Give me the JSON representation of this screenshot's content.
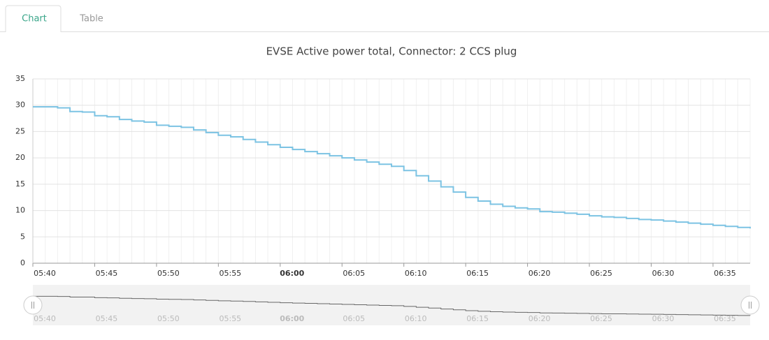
{
  "tabs": [
    "Chart",
    "Table"
  ],
  "chart_data": {
    "type": "line",
    "step": true,
    "title": "EVSE Active power total, Connector: 2 CCS plug",
    "x": [
      "05:40",
      "05:41",
      "05:42",
      "05:43",
      "05:44",
      "05:45",
      "05:46",
      "05:47",
      "05:48",
      "05:49",
      "05:50",
      "05:51",
      "05:52",
      "05:53",
      "05:54",
      "05:55",
      "05:56",
      "05:57",
      "05:58",
      "05:59",
      "06:00",
      "06:01",
      "06:02",
      "06:03",
      "06:04",
      "06:05",
      "06:06",
      "06:07",
      "06:08",
      "06:09",
      "06:10",
      "06:11",
      "06:12",
      "06:13",
      "06:14",
      "06:15",
      "06:16",
      "06:17",
      "06:18",
      "06:19",
      "06:20",
      "06:21",
      "06:22",
      "06:23",
      "06:24",
      "06:25",
      "06:26",
      "06:27",
      "06:28",
      "06:29",
      "06:30",
      "06:31",
      "06:32",
      "06:33",
      "06:34",
      "06:35",
      "06:36",
      "06:37",
      "06:38"
    ],
    "series": [
      {
        "color": "#7cc3e3",
        "values": [
          29.7,
          29.7,
          29.5,
          28.8,
          28.7,
          28.0,
          27.8,
          27.3,
          27.0,
          26.8,
          26.2,
          26.0,
          25.8,
          25.3,
          24.8,
          24.3,
          24.0,
          23.5,
          23.0,
          22.5,
          22.0,
          21.6,
          21.2,
          20.8,
          20.4,
          20.0,
          19.6,
          19.2,
          18.8,
          18.4,
          17.6,
          16.6,
          15.6,
          14.5,
          13.5,
          12.5,
          11.8,
          11.2,
          10.8,
          10.5,
          10.3,
          9.8,
          9.7,
          9.5,
          9.3,
          9.0,
          8.8,
          8.7,
          8.5,
          8.3,
          8.2,
          8.0,
          7.8,
          7.6,
          7.4,
          7.2,
          7.0,
          6.8,
          6.6
        ]
      }
    ],
    "xlim": [
      "05:40",
      "06:38"
    ],
    "xticks": [
      "05:40",
      "05:45",
      "05:50",
      "05:55",
      "06:00",
      "06:05",
      "06:10",
      "06:15",
      "06:20",
      "06:25",
      "06:30",
      "06:35"
    ],
    "ylim": [
      0,
      35
    ],
    "yticks": [
      0,
      5,
      10,
      15,
      20,
      25,
      30,
      35
    ],
    "grid": true,
    "navigator": true
  }
}
